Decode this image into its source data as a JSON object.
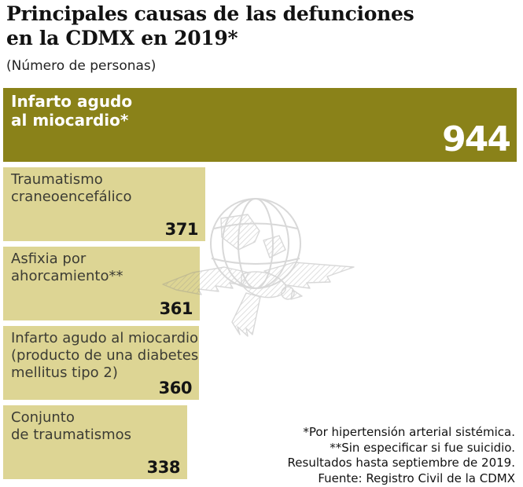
{
  "header": {
    "title": "Principales causas de las defunciones\nen la CDMX en 2019*",
    "subtitle": "(Número de personas)"
  },
  "chart_data": {
    "type": "bar",
    "orientation": "horizontal",
    "title": "Principales causas de las defunciones en la CDMX en 2019*",
    "unit_label": "(Número de personas)",
    "categories": [
      "Infarto agudo al miocardio*",
      "Traumatismo craneoencefálico",
      "Asfixia por ahorcamiento**",
      "Infarto agudo al miocardio (producto de una diabetes mellitus tipo 2)",
      "Conjunto de traumatismos"
    ],
    "values": [
      944,
      371,
      361,
      360,
      338
    ],
    "xlim": [
      0,
      944
    ],
    "grid": false,
    "legend": "none",
    "bars": [
      {
        "label": "Infarto agudo\nal miocardio*",
        "value": 944,
        "primary": true
      },
      {
        "label": "Traumatismo\ncraneoencefálico",
        "value": 371,
        "primary": false
      },
      {
        "label": "Asfixia por\nahorcamiento**",
        "value": 361,
        "primary": false
      },
      {
        "label": "Infarto agudo al miocardio\n(producto de una diabetes\nmellitus tipo 2)",
        "value": 360,
        "primary": false
      },
      {
        "label": "Conjunto\nde traumatismos",
        "value": 338,
        "primary": false
      }
    ],
    "colors": {
      "primary_bar": "#8a8219",
      "secondary_bar": "#ddd594",
      "primary_text": "#ffffff",
      "secondary_text": "#141414",
      "watermark_gray": "#8f8f8f"
    }
  },
  "watermark_icon": "el-universal-eagle-globe-icon",
  "footnotes": [
    "*Por hipertensión arterial sistémica.",
    "**Sin especificar si fue suicidio.",
    "Resultados hasta septiembre de 2019.",
    "Fuente: Registro Civil de la CDMX"
  ]
}
